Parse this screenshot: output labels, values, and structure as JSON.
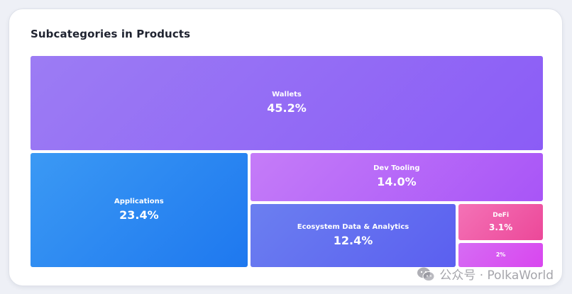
{
  "chart_data": {
    "type": "treemap",
    "title": "Subcategories in Products",
    "items": [
      {
        "name": "Wallets",
        "value": 45.2,
        "label": "45.2%",
        "color_start": "#9c7cf4",
        "color_end": "#8b5cf6"
      },
      {
        "name": "Applications",
        "value": 23.4,
        "label": "23.4%",
        "color_start": "#3b99f4",
        "color_end": "#1e78ef"
      },
      {
        "name": "Dev Tooling",
        "value": 14.0,
        "label": "14.0%",
        "color_start": "#c57cf8",
        "color_end": "#a855f7"
      },
      {
        "name": "Ecosystem Data & Analytics",
        "value": 12.4,
        "label": "12.4%",
        "color_start": "#6b7ff0",
        "color_end": "#5b5ff0"
      },
      {
        "name": "DeFi",
        "value": 3.1,
        "label": "3.1%",
        "color_start": "#f472b6",
        "color_end": "#ec4899"
      },
      {
        "name": "",
        "value": 2.0,
        "label": "2%",
        "color_start": "#d56cf4",
        "color_end": "#d946ef"
      }
    ]
  },
  "watermark": {
    "text": "公众号 · PolkaWorld",
    "icon": "wechat-icon"
  }
}
